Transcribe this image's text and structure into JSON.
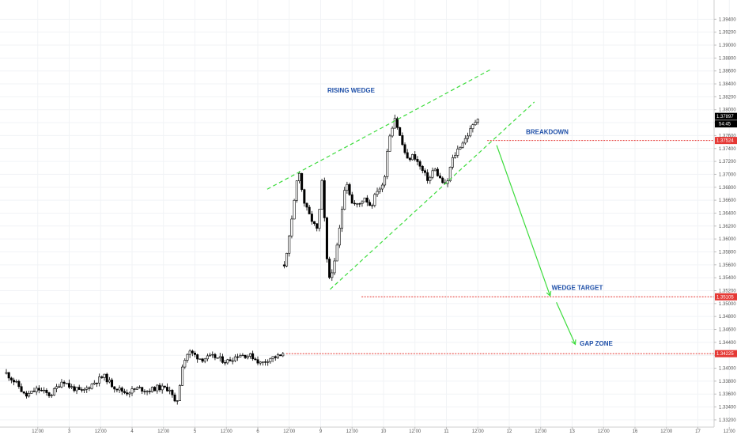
{
  "chart_data": {
    "type": "candlestick",
    "title": "",
    "xlabel": "",
    "ylabel": "",
    "ylim": [
      1.3315,
      1.396
    ],
    "grid": true,
    "y_ticks": [
      "1.39400",
      "1.39200",
      "1.39000",
      "1.38800",
      "1.38600",
      "1.38400",
      "1.38200",
      "1.38000",
      "1.37800",
      "1.37600",
      "1.37400",
      "1.37200",
      "1.37000",
      "1.36800",
      "1.36600",
      "1.36400",
      "1.36200",
      "1.36000",
      "1.35800",
      "1.35600",
      "1.35400",
      "1.35200",
      "1.35000",
      "1.34800",
      "1.34600",
      "1.34400",
      "1.34200",
      "1.34000",
      "1.33800",
      "1.33600",
      "1.33400",
      "1.33200"
    ],
    "x_ticks": [
      "12:00",
      "3",
      "12:00",
      "4",
      "12:00",
      "5",
      "12:00",
      "6",
      "12:00",
      "9",
      "12:00",
      "10",
      "12:00",
      "11",
      "12:00",
      "12",
      "12:00",
      "13",
      "12:00",
      "16",
      "12:00",
      "17",
      "12:00"
    ],
    "x_tick_positions": [
      0.5,
      1,
      1.5,
      2,
      2.5,
      3,
      3.5,
      4,
      4.5,
      5,
      5.5,
      6,
      6.5,
      7,
      7.5,
      8,
      8.5,
      9,
      9.5,
      10,
      10.5,
      11,
      11.5
    ],
    "price_label": "1.37897",
    "timer_label": "54:45",
    "levels": [
      {
        "name": "breakdown",
        "label": "BREAKDOWN",
        "value": 1.37524,
        "tag": "1.37524",
        "x_start": 7.65
      },
      {
        "name": "wedge-target",
        "label": "WEDGE TARGET",
        "value": 1.35105,
        "tag": "1.35105",
        "x_start": 5.65
      },
      {
        "name": "gap-zone",
        "label": "GAP ZONE",
        "value": 1.34225,
        "tag": "1.34225",
        "x_start": 4.45
      }
    ],
    "wedge_label": "RISING WEDGE",
    "wedge_upper": [
      [
        4.15,
        1.3677
      ],
      [
        7.7,
        1.3862
      ]
    ],
    "wedge_lower": [
      [
        5.15,
        1.3522
      ],
      [
        8.4,
        1.3812
      ]
    ],
    "arrows": [
      [
        [
          7.8,
          1.3745
        ],
        [
          8.65,
          1.3512
        ]
      ],
      [
        [
          8.75,
          1.3502
        ],
        [
          9.05,
          1.3437
        ]
      ]
    ],
    "series": [
      {
        "x_start": 0.0,
        "x_end": 4.42,
        "points": [
          [
            0,
            1.3392
          ],
          [
            0.2,
            1.3372
          ],
          [
            0.3,
            1.3356
          ],
          [
            0.5,
            1.3368
          ],
          [
            0.7,
            1.3358
          ],
          [
            0.9,
            1.3382
          ],
          [
            1.0,
            1.3372
          ],
          [
            1.2,
            1.3363
          ],
          [
            1.4,
            1.3378
          ],
          [
            1.55,
            1.3388
          ],
          [
            1.7,
            1.3372
          ],
          [
            1.9,
            1.3362
          ],
          [
            2.1,
            1.3369
          ],
          [
            2.25,
            1.3365
          ],
          [
            2.4,
            1.337
          ],
          [
            2.6,
            1.3368
          ],
          [
            2.7,
            1.334
          ],
          [
            2.75,
            1.3368
          ],
          [
            2.8,
            1.3405
          ],
          [
            2.9,
            1.3426
          ],
          [
            3.1,
            1.3414
          ],
          [
            3.3,
            1.3418
          ],
          [
            3.5,
            1.341
          ],
          [
            3.7,
            1.3421
          ],
          [
            3.9,
            1.3419
          ],
          [
            4.05,
            1.3407
          ],
          [
            4.2,
            1.3416
          ],
          [
            4.42,
            1.342
          ]
        ]
      },
      {
        "x_start": 4.42,
        "x_end": 7.52,
        "points": [
          [
            4.42,
            1.356
          ],
          [
            4.52,
            1.3612
          ],
          [
            4.65,
            1.3712
          ],
          [
            4.72,
            1.3662
          ],
          [
            4.8,
            1.364
          ],
          [
            4.95,
            1.3612
          ],
          [
            5.03,
            1.3698
          ],
          [
            5.08,
            1.3585
          ],
          [
            5.13,
            1.3538
          ],
          [
            5.22,
            1.3562
          ],
          [
            5.3,
            1.3615
          ],
          [
            5.4,
            1.3695
          ],
          [
            5.5,
            1.3655
          ],
          [
            5.6,
            1.3652
          ],
          [
            5.7,
            1.3665
          ],
          [
            5.8,
            1.365
          ],
          [
            5.9,
            1.3676
          ],
          [
            6.0,
            1.3682
          ],
          [
            6.08,
            1.3755
          ],
          [
            6.18,
            1.3788
          ],
          [
            6.28,
            1.3752
          ],
          [
            6.38,
            1.3722
          ],
          [
            6.48,
            1.373
          ],
          [
            6.6,
            1.3708
          ],
          [
            6.72,
            1.369
          ],
          [
            6.8,
            1.371
          ],
          [
            6.9,
            1.3693
          ],
          [
            7.0,
            1.368
          ],
          [
            7.08,
            1.372
          ],
          [
            7.2,
            1.3742
          ],
          [
            7.3,
            1.3755
          ],
          [
            7.38,
            1.3768
          ],
          [
            7.46,
            1.3782
          ],
          [
            7.52,
            1.3792
          ]
        ]
      }
    ]
  }
}
